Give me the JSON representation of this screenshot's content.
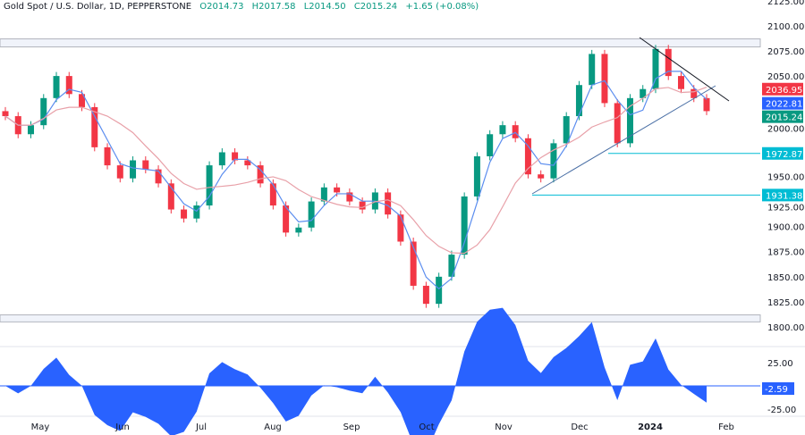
{
  "header": {
    "symbol": "Gold Spot / U.S. Dollar, 1D, PEPPERSTONE",
    "open": "O2014.73",
    "high": "H2017.58",
    "low": "L2014.50",
    "close": "C2015.24",
    "change": "+1.65 (+0.08%)"
  },
  "chart_data": [
    {
      "type": "candlestick",
      "title": "Gold Spot / U.S. Dollar, 1D, PEPPERSTONE",
      "ylim": [
        1800,
        2125
      ],
      "y_ticks": [
        "2125.00",
        "2100.00",
        "2075.00",
        "2050.00",
        "2000.00",
        "1950.00",
        "1925.00",
        "1900.00",
        "1875.00",
        "1850.00",
        "1825.00",
        "1800.00"
      ],
      "x_ticks": [
        "May",
        "Jun",
        "Jul",
        "Aug",
        "Sep",
        "Oct",
        "Nov",
        "Dec",
        "2024",
        "Feb"
      ],
      "closes": [
        2010,
        1992,
        2001,
        2028,
        2050,
        2032,
        2019,
        1979,
        1961,
        1948,
        1966,
        1957,
        1943,
        1917,
        1908,
        1921,
        1961,
        1974,
        1966,
        1961,
        1943,
        1921,
        1894,
        1899,
        1925,
        1939,
        1934,
        1925,
        1917,
        1934,
        1912,
        1885,
        1841,
        1823,
        1850,
        1872,
        1930,
        1970,
        1992,
        2001,
        1988,
        1952,
        1948,
        1983,
        2010,
        2041,
        2072,
        2023,
        1983,
        2028,
        2037,
        2077,
        2050,
        2037,
        2028,
        2015
      ],
      "price_labels": [
        {
          "value": "2036.95",
          "color": "#f23645"
        },
        {
          "value": "2022.81",
          "color": "#2962ff"
        },
        {
          "value": "2015.24",
          "color": "#089981"
        },
        {
          "value": "1972.87",
          "color": "#00bcd4"
        },
        {
          "value": "1931.38",
          "color": "#00bcd4"
        }
      ],
      "horizontal_levels": [
        1972.87,
        1931.38
      ],
      "zones": [
        [
          2079,
          2087
        ],
        [
          1805,
          1812
        ]
      ],
      "ma_colors": {
        "fast": "#5b8def",
        "slow": "#e8a0a8"
      },
      "candle_colors": {
        "up": "#089981",
        "down": "#f23645"
      }
    },
    {
      "type": "area",
      "y_ticks": [
        "25.00",
        "-25.00"
      ],
      "last_value": "-2.59",
      "color": "#2962ff"
    }
  ]
}
